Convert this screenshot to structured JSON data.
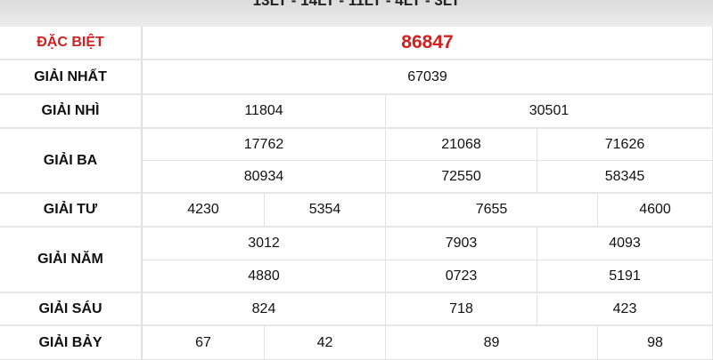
{
  "header_text": "13LT - 14LT - 11LT - 4LT - 3LT",
  "colors": {
    "special": "#d0201f",
    "text": "#111111",
    "grid": "#e2e2e2"
  },
  "prizes": {
    "dac_biet": {
      "label": "ĐẶC BIỆT",
      "numbers": [
        "86847"
      ]
    },
    "nhat": {
      "label": "GIẢI NHẤT",
      "numbers": [
        "67039"
      ]
    },
    "nhi": {
      "label": "GIẢI NHÌ",
      "numbers": [
        "11804",
        "30501"
      ]
    },
    "ba": {
      "label": "GIẢI BA",
      "numbers": [
        "17762",
        "21068",
        "71626",
        "80934",
        "72550",
        "58345"
      ]
    },
    "tu": {
      "label": "GIẢI TƯ",
      "numbers": [
        "4230",
        "5354",
        "7655",
        "4600"
      ]
    },
    "nam": {
      "label": "GIẢI NĂM",
      "numbers": [
        "3012",
        "7903",
        "4093",
        "4880",
        "0723",
        "5191"
      ]
    },
    "sau": {
      "label": "GIẢI SÁU",
      "numbers": [
        "824",
        "718",
        "423"
      ]
    },
    "bay": {
      "label": "GIẢI BẢY",
      "numbers": [
        "67",
        "42",
        "89",
        "98"
      ]
    }
  }
}
